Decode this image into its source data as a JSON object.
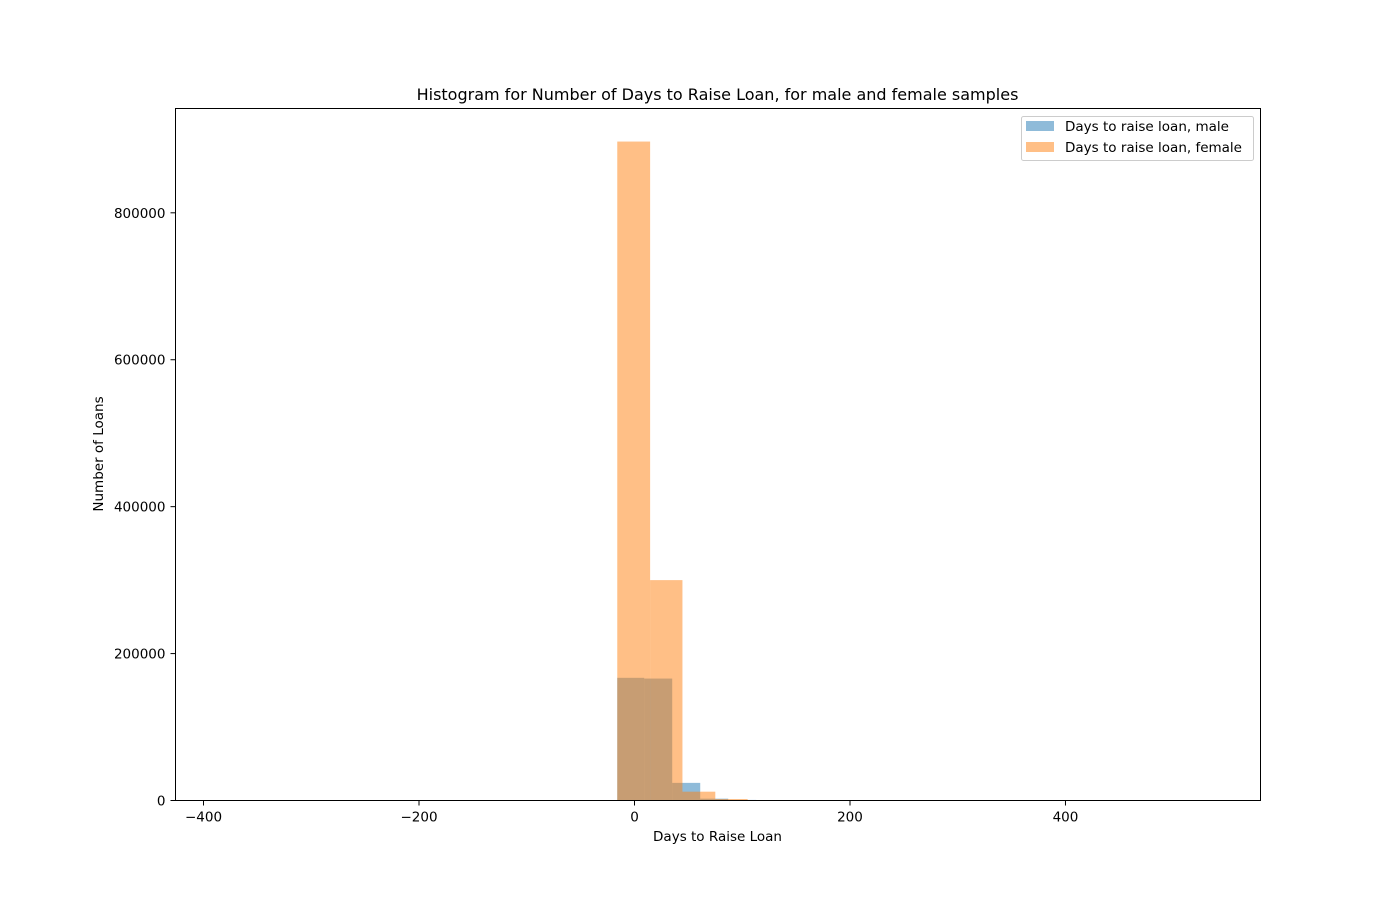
{
  "chart_data": {
    "type": "bar",
    "title": "Histogram for Number of Days to Raise Loan, for male and female samples",
    "xlabel": "Days to Raise Loan",
    "ylabel": "Number of Loans",
    "xlim": [
      -426,
      581
    ],
    "ylim": [
      0,
      942000
    ],
    "x_ticks": [
      -400,
      -200,
      0,
      200,
      400
    ],
    "x_tick_labels": [
      "−400",
      "−200",
      "0",
      "200",
      "400"
    ],
    "y_ticks": [
      0,
      200000,
      400000,
      600000,
      800000
    ],
    "y_tick_labels": [
      "0",
      "200000",
      "400000",
      "600000",
      "800000"
    ],
    "grid": false,
    "legend_position": "top-right",
    "series": [
      {
        "name": "Days to raise loan, male",
        "color": "#1f77b4",
        "opacity": 0.5,
        "bins": [
          {
            "x0": -16,
            "x1": 9,
            "value": 167000
          },
          {
            "x0": 9,
            "x1": 35,
            "value": 166000
          },
          {
            "x0": 35,
            "x1": 61,
            "value": 24000
          },
          {
            "x0": 61,
            "x1": 87,
            "value": 2500
          },
          {
            "x0": 87,
            "x1": 113,
            "value": 800
          }
        ]
      },
      {
        "name": "Days to raise loan, female",
        "color": "#ff7f0e",
        "opacity": 0.5,
        "bins": [
          {
            "x0": -16,
            "x1": 14.5,
            "value": 897000
          },
          {
            "x0": 14.5,
            "x1": 44.5,
            "value": 300000
          },
          {
            "x0": 44.5,
            "x1": 75,
            "value": 12000
          },
          {
            "x0": 75,
            "x1": 105,
            "value": 2000
          },
          {
            "x0": 105,
            "x1": 135,
            "value": 300
          }
        ]
      }
    ]
  }
}
